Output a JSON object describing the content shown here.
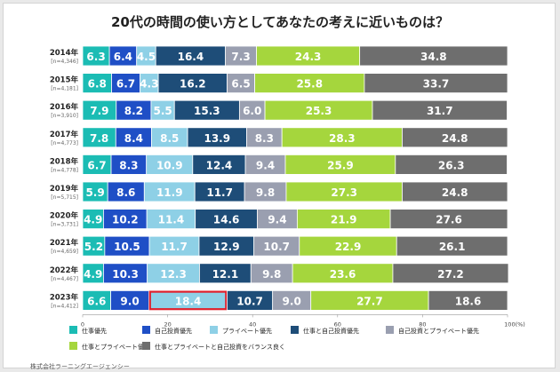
{
  "chart_data": {
    "type": "bar",
    "orientation": "horizontal",
    "stacked": true,
    "title": "20代の時間の使い方としてあなたの考えに近いものは？",
    "categories": [
      "2014年",
      "2015年",
      "2016年",
      "2017年",
      "2018年",
      "2019年",
      "2020年",
      "2021年",
      "2022年",
      "2023年"
    ],
    "sample_sizes": [
      "[n=4,346]",
      "[n=4,181]",
      "[n=3,910]",
      "[n=4,773]",
      "[n=4,778]",
      "[n=5,715]",
      "[n=3,731]",
      "[n=4,659]",
      "[n=4,467]",
      "[n=4,412]"
    ],
    "series": [
      {
        "name": "仕事優先",
        "color": "#1bbcb4",
        "values": [
          6.3,
          6.8,
          7.9,
          7.8,
          6.7,
          5.9,
          4.9,
          5.2,
          4.9,
          6.6
        ]
      },
      {
        "name": "自己投資優先",
        "color": "#1f4fc6",
        "values": [
          6.4,
          6.7,
          8.2,
          8.4,
          8.3,
          8.6,
          10.2,
          10.5,
          10.3,
          9.0
        ]
      },
      {
        "name": "プライベート優先",
        "color": "#8ed0e6",
        "values": [
          4.5,
          4.3,
          5.5,
          8.5,
          10.9,
          11.9,
          11.4,
          11.7,
          12.3,
          18.4
        ]
      },
      {
        "name": "仕事と自己投資優先",
        "color": "#1e4d78",
        "values": [
          16.4,
          16.2,
          15.3,
          13.9,
          12.4,
          11.7,
          14.6,
          12.9,
          12.1,
          10.7
        ]
      },
      {
        "name": "自己投資とプライベート優先",
        "color": "#9a9fb0",
        "values": [
          7.3,
          6.5,
          6.0,
          8.3,
          9.4,
          9.8,
          9.4,
          10.7,
          9.8,
          9.0
        ]
      },
      {
        "name": "仕事とプライベート優先",
        "color": "#a5d63d",
        "values": [
          24.3,
          25.8,
          25.3,
          28.3,
          25.9,
          27.3,
          21.9,
          22.9,
          23.6,
          27.7
        ]
      },
      {
        "name": "仕事とプライベートと自己投資をバランス良く",
        "color": "#6e6e6e",
        "values": [
          34.8,
          33.7,
          31.7,
          24.8,
          26.3,
          24.8,
          27.6,
          26.1,
          27.2,
          18.6
        ]
      }
    ],
    "xlim": [
      0,
      100
    ],
    "xticks": [
      "0",
      "20",
      "40",
      "60",
      "80",
      "100(%)"
    ],
    "highlight": {
      "category": "2023年",
      "series": "プライベート優先",
      "color": "#e0202c"
    },
    "legend_position": "bottom",
    "grid": false
  },
  "footer": {
    "credit": "株式会社ラーニングエージェンシー"
  }
}
